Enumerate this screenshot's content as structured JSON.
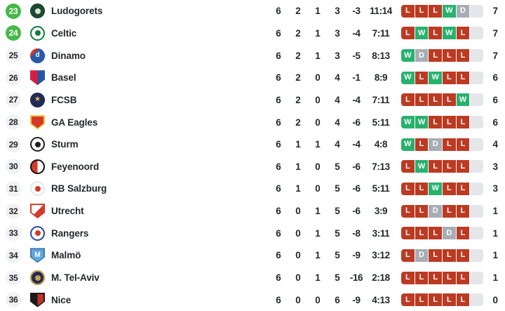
{
  "table": {
    "colors": {
      "qual": "#46b847",
      "pos_bg": "#f1f2f4",
      "text": "#23272d",
      "form_win": "#28b16d",
      "form_loss": "#bc3a22",
      "form_draw": "#a7adb4",
      "form_empty": "#e4e6e9"
    },
    "rows": [
      {
        "pos": "23",
        "highlight": true,
        "team": "Ludogorets",
        "played": "6",
        "wins": "2",
        "draws": "1",
        "losses": "3",
        "gd": "-3",
        "goals": "11:14",
        "form": [
          "L",
          "L",
          "L",
          "W",
          "D"
        ],
        "pts": "7",
        "crest": {
          "shape": "circle",
          "bg": "#1c4a2f",
          "dot": "#d8e4da"
        }
      },
      {
        "pos": "24",
        "highlight": true,
        "team": "Celtic",
        "played": "6",
        "wins": "2",
        "draws": "1",
        "losses": "3",
        "gd": "-4",
        "goals": "7:11",
        "form": [
          "L",
          "W",
          "L",
          "W",
          "L"
        ],
        "pts": "7",
        "crest": {
          "shape": "circle",
          "bg": "#ffffff",
          "ring": "#0c7c3c",
          "dot": "#0c7c3c"
        }
      },
      {
        "pos": "25",
        "highlight": false,
        "team": "Dinamo",
        "played": "6",
        "wins": "2",
        "draws": "1",
        "losses": "3",
        "gd": "-5",
        "goals": "8:13",
        "form": [
          "W",
          "D",
          "L",
          "L",
          "L"
        ],
        "pts": "7",
        "crest": {
          "shape": "circle",
          "bg": "#2a59a8",
          "quarter": "#cf3a30",
          "letter": "d",
          "letterColor": "#ffffff"
        }
      },
      {
        "pos": "26",
        "highlight": false,
        "team": "Basel",
        "played": "6",
        "wins": "2",
        "draws": "0",
        "losses": "4",
        "gd": "-1",
        "goals": "8:9",
        "form": [
          "W",
          "L",
          "W",
          "L",
          "L"
        ],
        "pts": "6",
        "crest": {
          "shape": "shield",
          "bg": "#d61f3f",
          "half": "#2456a4"
        }
      },
      {
        "pos": "27",
        "highlight": false,
        "team": "FCSB",
        "played": "6",
        "wins": "2",
        "draws": "0",
        "losses": "4",
        "gd": "-4",
        "goals": "7:11",
        "form": [
          "L",
          "L",
          "L",
          "L",
          "W"
        ],
        "pts": "6",
        "crest": {
          "shape": "circle",
          "bg": "#222a55",
          "letter": "★",
          "letterColor": "#e8c24b"
        }
      },
      {
        "pos": "28",
        "highlight": false,
        "team": "GA Eagles",
        "played": "6",
        "wins": "2",
        "draws": "0",
        "losses": "4",
        "gd": "-6",
        "goals": "5:11",
        "form": [
          "W",
          "W",
          "L",
          "L",
          "L"
        ],
        "pts": "6",
        "crest": {
          "shape": "shield",
          "bg": "#d6392b",
          "border": "#f0c93f"
        }
      },
      {
        "pos": "29",
        "highlight": false,
        "team": "Sturm",
        "played": "6",
        "wins": "1",
        "draws": "1",
        "losses": "4",
        "gd": "-4",
        "goals": "4:8",
        "form": [
          "W",
          "L",
          "D",
          "L",
          "L"
        ],
        "pts": "4",
        "crest": {
          "shape": "circle",
          "bg": "#ffffff",
          "ring": "#1e1e1e",
          "dot": "#1e1e1e"
        }
      },
      {
        "pos": "30",
        "highlight": false,
        "team": "Feyenoord",
        "played": "6",
        "wins": "1",
        "draws": "0",
        "losses": "5",
        "gd": "-6",
        "goals": "7:13",
        "form": [
          "L",
          "W",
          "L",
          "L",
          "L"
        ],
        "pts": "3",
        "crest": {
          "shape": "circle",
          "bg": "#d6392b",
          "half": "#ffffff",
          "ring": "#141414"
        }
      },
      {
        "pos": "31",
        "highlight": false,
        "team": "RB Salzburg",
        "played": "6",
        "wins": "1",
        "draws": "0",
        "losses": "5",
        "gd": "-6",
        "goals": "5:11",
        "form": [
          "L",
          "L",
          "W",
          "L",
          "L"
        ],
        "pts": "3",
        "crest": {
          "shape": "circle",
          "bg": "#ffffff",
          "ring": "#e4e6e8",
          "dot": "#d6392b"
        }
      },
      {
        "pos": "32",
        "highlight": false,
        "team": "Utrecht",
        "played": "6",
        "wins": "0",
        "draws": "1",
        "losses": "5",
        "gd": "-6",
        "goals": "3:9",
        "form": [
          "L",
          "L",
          "D",
          "L",
          "L"
        ],
        "pts": "1",
        "crest": {
          "shape": "shield",
          "bg": "#ffffff",
          "diag": "#d6392b",
          "border": "#d6392b"
        }
      },
      {
        "pos": "33",
        "highlight": false,
        "team": "Rangers",
        "played": "6",
        "wins": "0",
        "draws": "1",
        "losses": "5",
        "gd": "-8",
        "goals": "3:11",
        "form": [
          "L",
          "L",
          "L",
          "D",
          "L"
        ],
        "pts": "1",
        "crest": {
          "shape": "circle",
          "bg": "#ffffff",
          "ring": "#27449c",
          "dot": "#cf3a30"
        }
      },
      {
        "pos": "34",
        "highlight": false,
        "team": "Malmö",
        "played": "6",
        "wins": "0",
        "draws": "1",
        "losses": "5",
        "gd": "-9",
        "goals": "3:12",
        "form": [
          "L",
          "D",
          "L",
          "L",
          "L"
        ],
        "pts": "1",
        "crest": {
          "shape": "shield",
          "bg": "#63a9dc",
          "border": "#3f78ae",
          "letter": "M",
          "letterColor": "#ffffff"
        }
      },
      {
        "pos": "35",
        "highlight": false,
        "team": "M. Tel-Aviv",
        "played": "6",
        "wins": "0",
        "draws": "1",
        "losses": "5",
        "gd": "-16",
        "goals": "2:18",
        "form": [
          "L",
          "L",
          "L",
          "L",
          "L"
        ],
        "pts": "1",
        "crest": {
          "shape": "circle",
          "bg": "#222a5e",
          "ring": "#c9a23f",
          "dot": "#c9a23f"
        }
      },
      {
        "pos": "36",
        "highlight": false,
        "team": "Nice",
        "played": "6",
        "wins": "0",
        "draws": "0",
        "losses": "6",
        "gd": "-9",
        "goals": "4:13",
        "form": [
          "L",
          "L",
          "L",
          "L",
          "L"
        ],
        "pts": "0",
        "crest": {
          "shape": "shield",
          "bg": "#1a1a1a",
          "half": "#c43127",
          "border": "#1a1a1a"
        }
      }
    ]
  }
}
